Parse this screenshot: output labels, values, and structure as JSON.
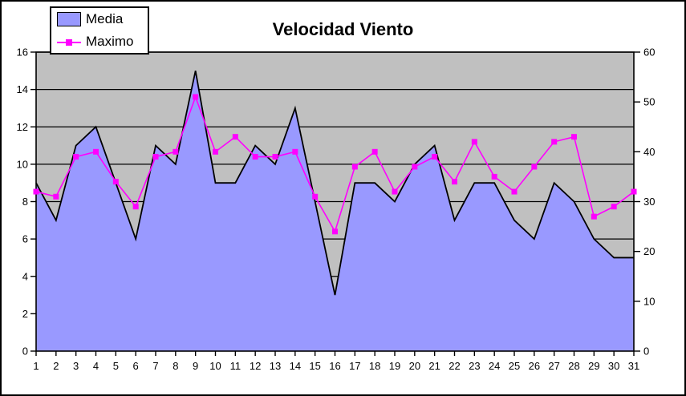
{
  "title": "Velocidad Viento",
  "legend": {
    "items": [
      {
        "label": "Media",
        "swatch": "area-swatch"
      },
      {
        "label": "Maximo",
        "swatch": "line-marker-swatch"
      }
    ]
  },
  "chart_data": {
    "type": "area",
    "title": "Velocidad Viento",
    "categories": [
      1,
      2,
      3,
      4,
      5,
      6,
      7,
      8,
      9,
      10,
      11,
      12,
      13,
      14,
      15,
      16,
      17,
      18,
      19,
      20,
      21,
      22,
      23,
      24,
      25,
      26,
      27,
      28,
      29,
      30,
      31
    ],
    "series": [
      {
        "name": "Media",
        "type": "area",
        "axis": "left",
        "fill_color": "#9999ff",
        "outline_color": "#000000",
        "values": [
          9,
          7,
          11,
          12,
          9,
          6,
          11,
          10,
          15,
          9,
          9,
          11,
          10,
          13,
          8,
          3,
          9,
          9,
          8,
          10,
          11,
          7,
          9,
          9,
          7,
          6,
          9,
          8,
          6,
          5,
          5
        ]
      },
      {
        "name": "Maximo",
        "type": "line",
        "axis": "right",
        "color": "#ff00ff",
        "marker": "square",
        "values": [
          32,
          31,
          39,
          40,
          34,
          29,
          39,
          40,
          51,
          40,
          43,
          39,
          39,
          40,
          31,
          24,
          37,
          40,
          32,
          37,
          39,
          34,
          42,
          35,
          32,
          37,
          42,
          43,
          27,
          29,
          32
        ]
      }
    ],
    "left_axis": {
      "min": 0,
      "max": 16,
      "tick_step": 2,
      "ticks": [
        0,
        2,
        4,
        6,
        8,
        10,
        12,
        14,
        16
      ]
    },
    "right_axis": {
      "min": 0,
      "max": 60,
      "tick_step": 10,
      "ticks": [
        0,
        10,
        20,
        30,
        40,
        50,
        60
      ]
    },
    "x_axis": {
      "tick_labels": [
        "1",
        "2",
        "3",
        "4",
        "5",
        "6",
        "7",
        "8",
        "9",
        "10",
        "11",
        "12",
        "13",
        "14",
        "15",
        "16",
        "17",
        "18",
        "19",
        "20",
        "21",
        "22",
        "23",
        "24",
        "25",
        "26",
        "27",
        "28",
        "29",
        "30",
        "31"
      ]
    },
    "plot_background": "#c0c0c0",
    "grid": true,
    "grid_color": "#000000",
    "legend_position": "top-left"
  }
}
